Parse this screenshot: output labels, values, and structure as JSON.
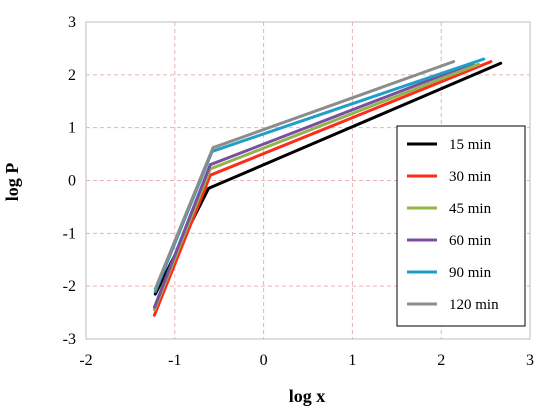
{
  "chart_data": {
    "type": "line",
    "title": "",
    "xlabel": "log x",
    "ylabel": "log P",
    "xlim": [
      -2,
      3
    ],
    "ylim": [
      -3,
      3
    ],
    "xticks": [
      "-2",
      "-1",
      "0",
      "1",
      "2",
      "3"
    ],
    "yticks": [
      "-3",
      "-2",
      "-1",
      "0",
      "1",
      "2",
      "3"
    ],
    "grid": true,
    "legend_position": "right",
    "series": [
      {
        "name": "15 min",
        "color": "#000000",
        "x": [
          -1.22,
          -0.62,
          2.67
        ],
        "y": [
          -2.15,
          -0.15,
          2.22
        ]
      },
      {
        "name": "30 min",
        "color": "#ff2a1a",
        "x": [
          -1.23,
          -0.6,
          2.56
        ],
        "y": [
          -2.55,
          0.1,
          2.25
        ]
      },
      {
        "name": "45 min",
        "color": "#8fb64a",
        "x": [
          -1.23,
          -0.6,
          2.42
        ],
        "y": [
          -2.45,
          0.22,
          2.2
        ]
      },
      {
        "name": "60 min",
        "color": "#7a4fa0",
        "x": [
          -1.23,
          -0.6,
          2.36
        ],
        "y": [
          -2.4,
          0.3,
          2.22
        ]
      },
      {
        "name": "90 min",
        "color": "#1f9fc8",
        "x": [
          -1.22,
          -0.58,
          2.48
        ],
        "y": [
          -2.1,
          0.55,
          2.3
        ]
      },
      {
        "name": "120 min",
        "color": "#8c8c8c",
        "x": [
          -1.22,
          -0.57,
          2.14
        ],
        "y": [
          -2.05,
          0.62,
          2.25
        ]
      }
    ]
  }
}
